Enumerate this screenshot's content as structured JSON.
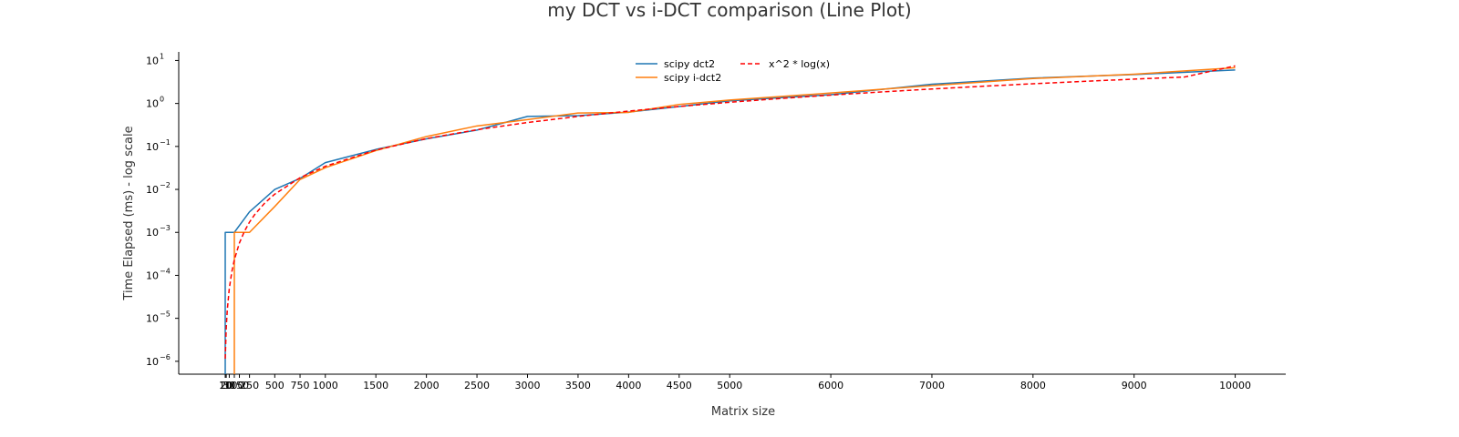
{
  "chart_data": {
    "type": "line",
    "title": "my DCT vs i-DCT comparison (Line Plot)",
    "xlabel": "Matrix size",
    "ylabel": "Time Elapsed (ms) - log scale",
    "y_scale": "log",
    "xlim": [
      -450,
      10500
    ],
    "ylim_exponent": [
      -6.3,
      1.2
    ],
    "x_ticks": [
      10,
      20,
      50,
      100,
      150,
      250,
      500,
      750,
      1000,
      1500,
      2000,
      2500,
      3000,
      3500,
      4000,
      4500,
      5000,
      6000,
      7000,
      8000,
      9000,
      10000
    ],
    "x_tick_labels": [
      "10",
      "20",
      "50",
      "100",
      "150",
      "250",
      "500",
      "750",
      "1000",
      "1500",
      "2000",
      "2500",
      "3000",
      "3500",
      "4000",
      "4500",
      "5000",
      "6000",
      "7000",
      "8000",
      "9000",
      "10000"
    ],
    "y_ticks_exponent": [
      -6,
      -5,
      -4,
      -3,
      -2,
      -1,
      0,
      1
    ],
    "y_tick_labels": [
      "10",
      "10",
      "10",
      "10",
      "10",
      "10",
      "10",
      "10"
    ],
    "y_tick_sup": [
      "−6",
      "−5",
      "−4",
      "−3",
      "−2",
      "−1",
      "0",
      "1"
    ],
    "grid": false,
    "legend_position": "top-center",
    "series": [
      {
        "name": "scipy dct2",
        "color": "#1f77b4",
        "style": "solid",
        "x": [
          10,
          10,
          100,
          250,
          500,
          750,
          1000,
          1500,
          2000,
          2500,
          3000,
          3500,
          4000,
          4500,
          5000,
          6000,
          7000,
          8000,
          9000,
          10000
        ],
        "y": [
          1e-09,
          0.001,
          0.001,
          0.003,
          0.01,
          0.018,
          0.042,
          0.085,
          0.15,
          0.24,
          0.5,
          0.52,
          0.63,
          0.85,
          1.15,
          1.6,
          2.8,
          3.9,
          4.7,
          6.0
        ]
      },
      {
        "name": "scipy i-dct2",
        "color": "#ff7f0e",
        "style": "solid",
        "x": [
          100,
          100,
          150,
          250,
          500,
          750,
          1000,
          1500,
          2000,
          2500,
          3000,
          3500,
          4000,
          4500,
          5000,
          6000,
          7000,
          8000,
          9000,
          10000
        ],
        "y": [
          1e-09,
          0.001,
          0.001,
          0.001,
          0.004,
          0.017,
          0.032,
          0.08,
          0.17,
          0.3,
          0.42,
          0.6,
          0.62,
          0.95,
          1.2,
          1.75,
          2.6,
          3.8,
          4.8,
          6.8
        ]
      },
      {
        "name": "x^2 * log(x)",
        "color": "#ff0000",
        "style": "dashed",
        "x": [
          10,
          20,
          30,
          50,
          75,
          100,
          150,
          200,
          250,
          300,
          400,
          500,
          750,
          1000,
          1500,
          2000,
          2500,
          3000,
          3500,
          4000,
          4500,
          5000,
          5500,
          6000,
          6500,
          7000,
          7500,
          8000,
          8500,
          9000,
          9500,
          10000
        ],
        "y": [
          1.15e-06,
          6e-06,
          1.53e-05,
          4.89e-05,
          0.000121,
          0.00023,
          0.000564,
          0.00106,
          0.00173,
          0.00257,
          0.0048,
          0.00777,
          0.0187,
          0.0345,
          0.0823,
          0.152,
          0.245,
          0.36,
          0.5,
          0.664,
          0.852,
          1.065,
          1.303,
          1.566,
          1.855,
          2.169,
          2.509,
          2.875,
          3.266,
          3.684,
          4.128,
          7.5
        ]
      }
    ]
  }
}
